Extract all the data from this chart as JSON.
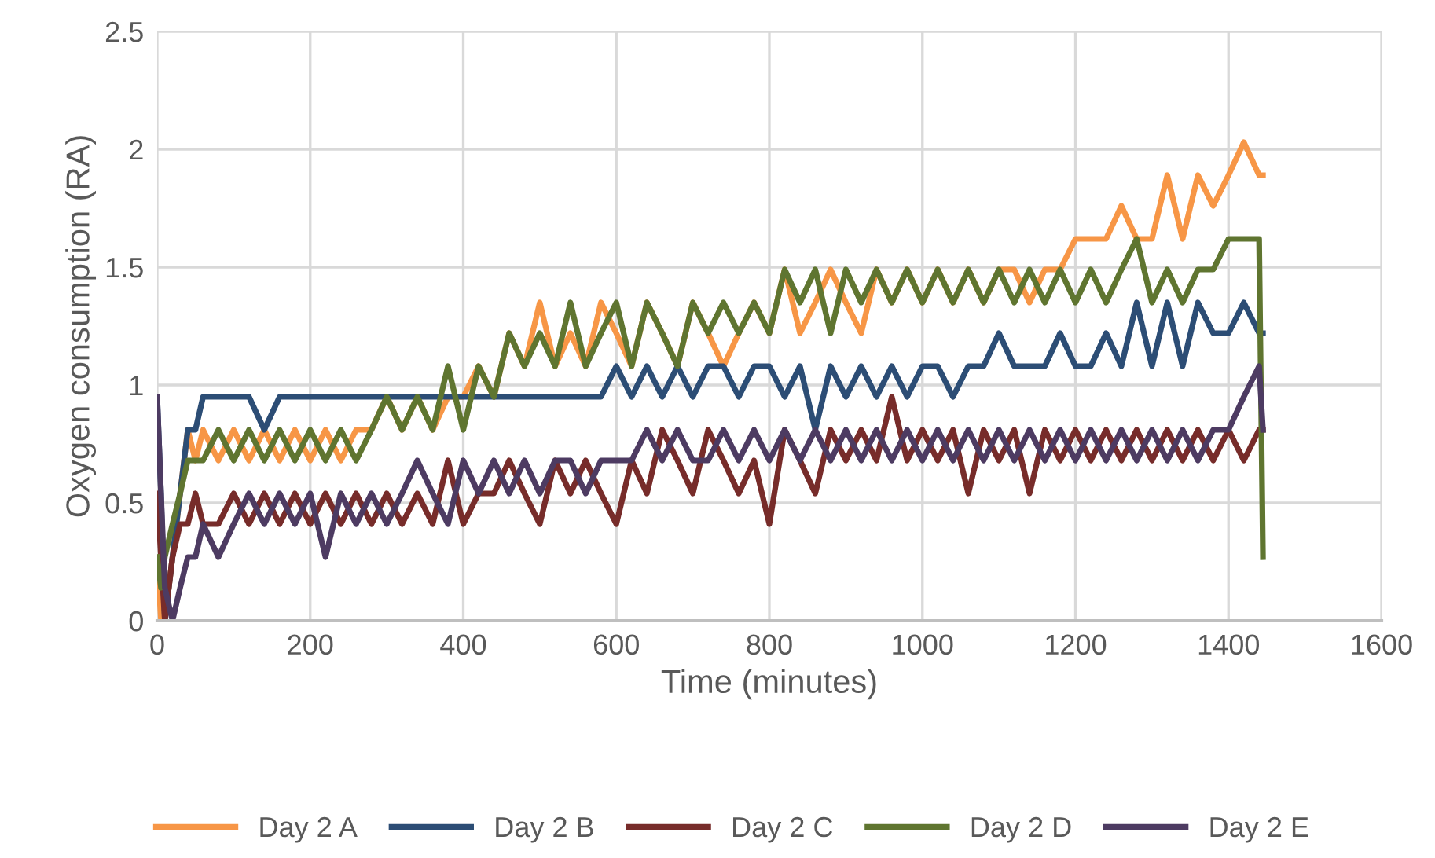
{
  "chart_data": {
    "type": "line",
    "xlabel": "Time (minutes)",
    "ylabel": "Oxygen consumption (RA)",
    "xlim": [
      0,
      1600
    ],
    "xticks": [
      0,
      200,
      400,
      600,
      800,
      1000,
      1200,
      1400,
      1600
    ],
    "ylim": [
      0,
      2.5
    ],
    "yticks": [
      0,
      0.5,
      1,
      1.5,
      2,
      2.5
    ],
    "grid": true,
    "legend": "bottom",
    "marker": "none",
    "line_style": "solid",
    "x": [
      0,
      5,
      10,
      20,
      30,
      40,
      50,
      60,
      80,
      100,
      120,
      140,
      160,
      180,
      200,
      220,
      240,
      260,
      280,
      300,
      320,
      340,
      360,
      380,
      400,
      420,
      440,
      460,
      480,
      500,
      520,
      540,
      560,
      580,
      600,
      620,
      640,
      660,
      680,
      700,
      720,
      740,
      760,
      780,
      800,
      820,
      840,
      860,
      880,
      900,
      920,
      940,
      960,
      980,
      1000,
      1020,
      1040,
      1060,
      1080,
      1100,
      1120,
      1140,
      1160,
      1180,
      1200,
      1220,
      1240,
      1260,
      1280,
      1300,
      1320,
      1340,
      1360,
      1380,
      1400,
      1420,
      1440,
      1445
    ],
    "series": [
      {
        "name": "Day 2 A",
        "color": "#f79646",
        "values": [
          0.27,
          0,
          0,
          0.27,
          0.54,
          0.81,
          0.68,
          0.81,
          0.68,
          0.81,
          0.68,
          0.81,
          0.68,
          0.81,
          0.68,
          0.81,
          0.68,
          0.81,
          0.81,
          0.95,
          0.81,
          0.95,
          0.81,
          0.95,
          0.95,
          1.08,
          0.95,
          1.22,
          1.08,
          1.35,
          1.08,
          1.22,
          1.08,
          1.35,
          1.22,
          1.08,
          1.35,
          1.22,
          1.08,
          1.35,
          1.22,
          1.08,
          1.22,
          1.35,
          1.22,
          1.49,
          1.22,
          1.35,
          1.49,
          1.35,
          1.22,
          1.49,
          1.35,
          1.49,
          1.35,
          1.49,
          1.35,
          1.49,
          1.35,
          1.49,
          1.49,
          1.35,
          1.49,
          1.49,
          1.62,
          1.62,
          1.62,
          1.76,
          1.62,
          1.62,
          1.89,
          1.62,
          1.89,
          1.76,
          1.89,
          2.03,
          1.89,
          1.89
        ]
      },
      {
        "name": "Day 2 B",
        "color": "#2c4d75",
        "values": [
          0.95,
          0.54,
          0,
          0.27,
          0.54,
          0.81,
          0.81,
          0.95,
          0.95,
          0.95,
          0.95,
          0.81,
          0.95,
          0.95,
          0.95,
          0.95,
          0.95,
          0.95,
          0.95,
          0.95,
          0.95,
          0.95,
          0.95,
          0.95,
          0.95,
          0.95,
          0.95,
          0.95,
          0.95,
          0.95,
          0.95,
          0.95,
          0.95,
          0.95,
          1.08,
          0.95,
          1.08,
          0.95,
          1.08,
          0.95,
          1.08,
          1.08,
          0.95,
          1.08,
          1.08,
          0.95,
          1.08,
          0.81,
          1.08,
          0.95,
          1.08,
          0.95,
          1.08,
          0.95,
          1.08,
          1.08,
          0.95,
          1.08,
          1.08,
          1.22,
          1.08,
          1.08,
          1.08,
          1.22,
          1.08,
          1.08,
          1.22,
          1.08,
          1.35,
          1.08,
          1.35,
          1.08,
          1.35,
          1.22,
          1.22,
          1.35,
          1.22,
          1.22
        ]
      },
      {
        "name": "Day 2 C",
        "color": "#772c2a",
        "values": [
          0.54,
          0.27,
          0,
          0.27,
          0.41,
          0.41,
          0.54,
          0.41,
          0.41,
          0.54,
          0.41,
          0.54,
          0.41,
          0.54,
          0.41,
          0.54,
          0.41,
          0.54,
          0.41,
          0.54,
          0.41,
          0.54,
          0.41,
          0.68,
          0.41,
          0.54,
          0.54,
          0.68,
          0.54,
          0.41,
          0.68,
          0.54,
          0.68,
          0.54,
          0.41,
          0.68,
          0.54,
          0.81,
          0.68,
          0.54,
          0.81,
          0.68,
          0.54,
          0.68,
          0.41,
          0.81,
          0.68,
          0.54,
          0.81,
          0.68,
          0.81,
          0.68,
          0.95,
          0.68,
          0.81,
          0.68,
          0.81,
          0.54,
          0.81,
          0.68,
          0.81,
          0.54,
          0.81,
          0.68,
          0.81,
          0.68,
          0.81,
          0.68,
          0.81,
          0.68,
          0.81,
          0.68,
          0.81,
          0.68,
          0.81,
          0.68,
          0.81,
          0.81
        ]
      },
      {
        "name": "Day 2 D",
        "color": "#5f7530",
        "values": [
          0.27,
          0.14,
          0.27,
          0.41,
          0.54,
          0.68,
          0.68,
          0.68,
          0.81,
          0.68,
          0.81,
          0.68,
          0.81,
          0.68,
          0.81,
          0.68,
          0.81,
          0.68,
          0.81,
          0.95,
          0.81,
          0.95,
          0.81,
          1.08,
          0.81,
          1.08,
          0.95,
          1.22,
          1.08,
          1.22,
          1.08,
          1.35,
          1.08,
          1.22,
          1.35,
          1.08,
          1.35,
          1.22,
          1.08,
          1.35,
          1.22,
          1.35,
          1.22,
          1.35,
          1.22,
          1.49,
          1.35,
          1.49,
          1.22,
          1.49,
          1.35,
          1.49,
          1.35,
          1.49,
          1.35,
          1.49,
          1.35,
          1.49,
          1.35,
          1.49,
          1.35,
          1.49,
          1.35,
          1.49,
          1.35,
          1.49,
          1.35,
          1.49,
          1.62,
          1.35,
          1.49,
          1.35,
          1.49,
          1.49,
          1.62,
          1.62,
          1.62,
          0.27
        ]
      },
      {
        "name": "Day 2 E",
        "color": "#4d3b62",
        "values": [
          0.95,
          0.54,
          0.14,
          0,
          0.14,
          0.27,
          0.27,
          0.41,
          0.27,
          0.41,
          0.54,
          0.41,
          0.54,
          0.41,
          0.54,
          0.27,
          0.54,
          0.41,
          0.54,
          0.41,
          0.54,
          0.68,
          0.54,
          0.41,
          0.68,
          0.54,
          0.68,
          0.54,
          0.68,
          0.54,
          0.68,
          0.68,
          0.54,
          0.68,
          0.68,
          0.68,
          0.81,
          0.68,
          0.81,
          0.68,
          0.68,
          0.81,
          0.68,
          0.81,
          0.68,
          0.81,
          0.68,
          0.81,
          0.68,
          0.81,
          0.68,
          0.81,
          0.68,
          0.81,
          0.68,
          0.81,
          0.68,
          0.81,
          0.68,
          0.81,
          0.68,
          0.81,
          0.68,
          0.81,
          0.68,
          0.81,
          0.68,
          0.81,
          0.68,
          0.81,
          0.68,
          0.81,
          0.68,
          0.81,
          0.81,
          0.95,
          1.08,
          0.81
        ]
      }
    ]
  }
}
